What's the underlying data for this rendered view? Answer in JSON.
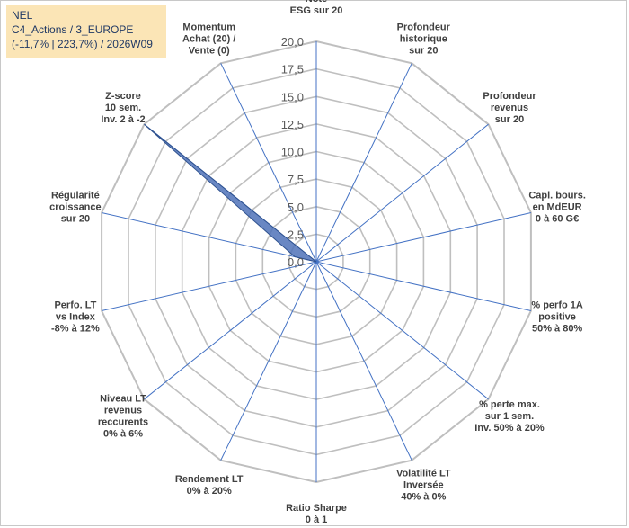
{
  "title_box": {
    "line1": "NEL",
    "line2": "C4_Actions / 3_EUROPE",
    "line3": "(-11,7% | 223,7%) / 2026W09"
  },
  "colors": {
    "grid": "#bfbfbf",
    "spoke": "#4472c4",
    "series_fill": "#4f72b8",
    "series_stroke": "#2f528f",
    "title_box_bg": "#fbe5b6",
    "title_text": "#1f3864"
  },
  "chart_data": {
    "type": "radar",
    "ylim": [
      0,
      20
    ],
    "ticks": [
      "0,0",
      "2,5",
      "5,0",
      "7,5",
      "10,0",
      "12,5",
      "15,0",
      "17,5",
      "20,0"
    ],
    "categories": [
      [
        "Note",
        "ESG sur 20"
      ],
      [
        "Profondeur",
        "historique",
        "sur 20"
      ],
      [
        "Profondeur",
        "revenus",
        "sur 20"
      ],
      [
        "Capl. bours.",
        "en MdEUR",
        "0 à 60 G€"
      ],
      [
        "% perfo 1A",
        "positive",
        "50% à 80%"
      ],
      [
        "% perte max.",
        "sur 1 sem.",
        "Inv. 50% à 20%"
      ],
      [
        "Volatilité LT",
        "Inversée",
        "40% à 0%"
      ],
      [
        "Ratio Sharpe",
        "0 à 1"
      ],
      [
        "Rendement LT",
        "0% à 20%"
      ],
      [
        "Niveau LT",
        "revenus",
        "reccurents",
        "0% à 6%"
      ],
      [
        "Perfo. LT",
        "vs Index",
        "-8% à 12%"
      ],
      [
        "Régularité",
        "croissance",
        "sur 20"
      ],
      [
        "Z-score",
        "10 sem.",
        "Inv. 2 à -2"
      ],
      [
        "Momentum",
        "Achat (20) /",
        "Vente (0)"
      ]
    ],
    "series": [
      {
        "values": [
          0,
          0,
          0,
          0,
          0,
          0,
          0,
          0,
          0,
          0,
          0,
          2.0,
          20.0,
          0
        ]
      }
    ],
    "grid": true,
    "legend": "none"
  }
}
